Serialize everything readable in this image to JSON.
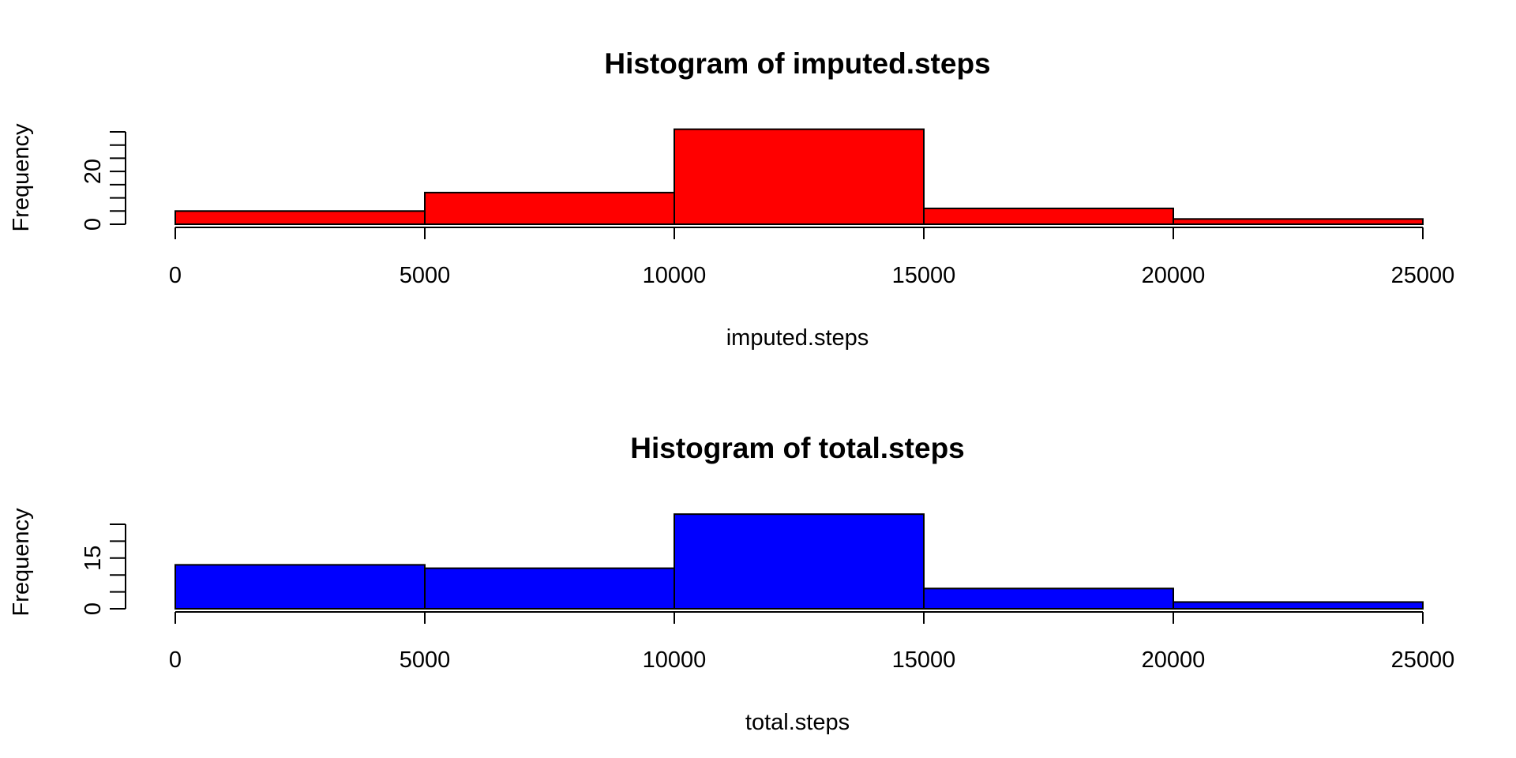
{
  "chart_data": [
    {
      "type": "bar",
      "title": "Histogram of imputed.steps",
      "xlabel": "imputed.steps",
      "ylabel": "Frequency",
      "bar_color": "#ff0000",
      "bins": [
        {
          "from": 0,
          "to": 5000,
          "count": 5
        },
        {
          "from": 5000,
          "to": 10000,
          "count": 12
        },
        {
          "from": 10000,
          "to": 15000,
          "count": 36
        },
        {
          "from": 15000,
          "to": 20000,
          "count": 6
        },
        {
          "from": 20000,
          "to": 25000,
          "count": 2
        }
      ],
      "x_ticks": [
        0,
        5000,
        10000,
        15000,
        20000,
        25000
      ],
      "x_tick_labels": [
        "0",
        "5000",
        "10000",
        "15000",
        "20000",
        "25000"
      ],
      "xlim": [
        0,
        25000
      ],
      "y_ticks": [
        0,
        5,
        10,
        15,
        20,
        25,
        30,
        35
      ],
      "y_tick_labels": [
        "0",
        "",
        "",
        "",
        "20",
        "",
        "",
        ""
      ],
      "ylim": [
        0,
        36
      ]
    },
    {
      "type": "bar",
      "title": "Histogram of total.steps",
      "xlabel": "total.steps",
      "ylabel": "Frequency",
      "bar_color": "#0000ff",
      "bins": [
        {
          "from": 0,
          "to": 5000,
          "count": 13
        },
        {
          "from": 5000,
          "to": 10000,
          "count": 12
        },
        {
          "from": 10000,
          "to": 15000,
          "count": 28
        },
        {
          "from": 15000,
          "to": 20000,
          "count": 6
        },
        {
          "from": 20000,
          "to": 25000,
          "count": 2
        }
      ],
      "x_ticks": [
        0,
        5000,
        10000,
        15000,
        20000,
        25000
      ],
      "x_tick_labels": [
        "0",
        "5000",
        "10000",
        "15000",
        "20000",
        "25000"
      ],
      "xlim": [
        0,
        25000
      ],
      "y_ticks": [
        0,
        5,
        10,
        15,
        20,
        25
      ],
      "y_tick_labels": [
        "0",
        "",
        "",
        "15",
        "",
        ""
      ],
      "ylim": [
        0,
        28
      ]
    }
  ]
}
